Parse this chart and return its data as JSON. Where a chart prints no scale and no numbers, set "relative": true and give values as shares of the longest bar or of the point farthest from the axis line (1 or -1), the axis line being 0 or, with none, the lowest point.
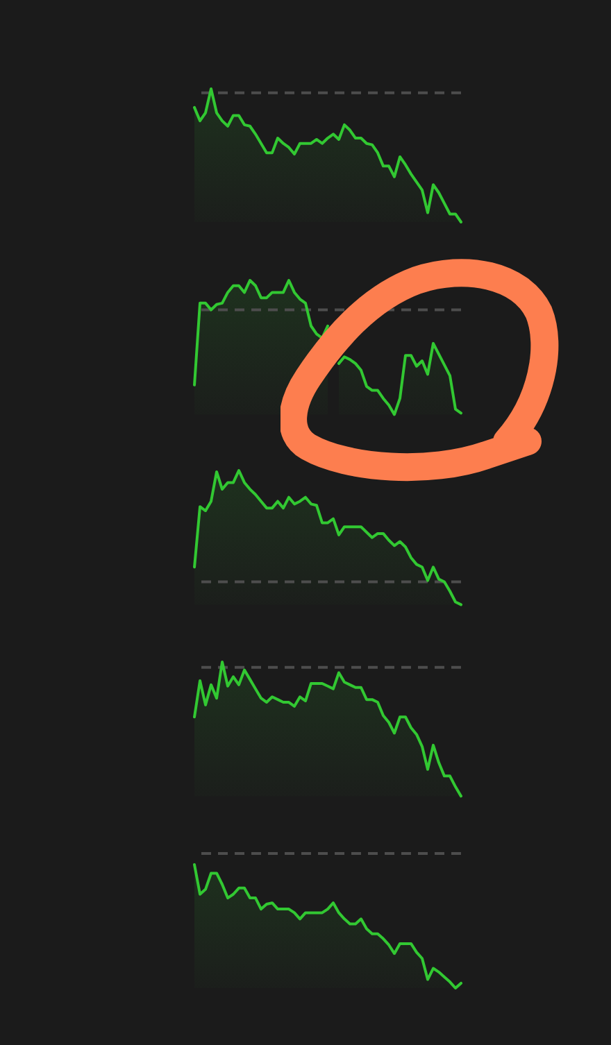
{
  "chart_data": [
    {
      "type": "area",
      "relative": true,
      "categories": [
        null,
        null,
        null,
        null,
        null,
        null,
        null,
        null,
        null,
        null,
        null,
        null,
        null,
        null,
        null,
        null,
        null,
        null,
        null,
        null,
        null,
        null,
        null,
        null,
        null,
        null,
        null,
        null,
        null,
        null,
        null,
        null,
        null,
        null,
        null,
        null,
        null,
        null,
        null,
        null,
        null,
        null,
        null,
        null,
        null,
        null,
        null,
        null,
        null
      ],
      "values": [
        0.86,
        0.76,
        0.82,
        1.0,
        0.82,
        0.76,
        0.72,
        0.8,
        0.8,
        0.73,
        0.72,
        0.66,
        0.59,
        0.52,
        0.52,
        0.63,
        0.59,
        0.56,
        0.51,
        0.59,
        0.59,
        0.59,
        0.62,
        0.59,
        0.63,
        0.66,
        0.62,
        0.73,
        0.69,
        0.63,
        0.63,
        0.59,
        0.58,
        0.52,
        0.42,
        0.42,
        0.34,
        0.49,
        0.43,
        0.36,
        0.3,
        0.24,
        0.07,
        0.28,
        0.22,
        0.14,
        0.06,
        0.06,
        0.0
      ],
      "color": "#32c832",
      "ref_lines": [
        {
          "axis": "y",
          "value": 0.97,
          "color": "#4d4d4d",
          "line_style": "dashed"
        }
      ]
    },
    {
      "type": "area",
      "relative": true,
      "categories": [
        null,
        null,
        null,
        null,
        null,
        null,
        null,
        null,
        null,
        null,
        null,
        null,
        null,
        null,
        null,
        null,
        null,
        null,
        null,
        null,
        null,
        null,
        null,
        null,
        null,
        null,
        null,
        null,
        null,
        null,
        null,
        null,
        null,
        null,
        null,
        null,
        null,
        null,
        null,
        null,
        null,
        null,
        null,
        null,
        null,
        null,
        null,
        null,
        null
      ],
      "values": [
        0.22,
        0.83,
        0.83,
        0.78,
        0.82,
        0.83,
        0.91,
        0.96,
        0.96,
        0.91,
        1.0,
        0.96,
        0.87,
        0.87,
        0.91,
        0.91,
        0.91,
        1.0,
        0.91,
        0.86,
        0.83,
        0.66,
        0.6,
        0.57,
        0.66,
        null,
        0.38,
        0.43,
        0.41,
        0.38,
        0.33,
        0.21,
        0.18,
        0.18,
        0.12,
        0.07,
        0.0,
        0.12,
        0.44,
        0.44,
        0.36,
        0.4,
        0.3,
        0.53,
        0.45,
        0.37,
        0.29,
        0.04,
        0.01
      ],
      "color": "#32c832",
      "ref_lines": [
        {
          "axis": "y",
          "value": 0.78,
          "color": "#4d4d4d",
          "line_style": "dashed"
        }
      ]
    },
    {
      "type": "area",
      "relative": true,
      "categories": [
        null,
        null,
        null,
        null,
        null,
        null,
        null,
        null,
        null,
        null,
        null,
        null,
        null,
        null,
        null,
        null,
        null,
        null,
        null,
        null,
        null,
        null,
        null,
        null,
        null,
        null,
        null,
        null,
        null,
        null,
        null,
        null,
        null,
        null,
        null,
        null,
        null,
        null,
        null,
        null,
        null,
        null,
        null,
        null,
        null,
        null,
        null,
        null,
        null
      ],
      "values": [
        0.28,
        0.73,
        0.7,
        0.77,
        0.99,
        0.86,
        0.91,
        0.91,
        1.0,
        0.91,
        0.86,
        0.82,
        0.77,
        0.72,
        0.72,
        0.77,
        0.72,
        0.8,
        0.75,
        0.77,
        0.8,
        0.75,
        0.74,
        0.61,
        0.61,
        0.64,
        0.52,
        0.58,
        0.58,
        0.58,
        0.58,
        0.54,
        0.5,
        0.53,
        0.53,
        0.48,
        0.44,
        0.47,
        0.43,
        0.35,
        0.3,
        0.28,
        0.18,
        0.28,
        0.19,
        0.17,
        0.1,
        0.02,
        0.0
      ],
      "color": "#32c832",
      "ref_lines": [
        {
          "axis": "y",
          "value": 0.17,
          "color": "#4d4d4d",
          "line_style": "dashed"
        }
      ]
    },
    {
      "type": "area",
      "relative": true,
      "categories": [
        null,
        null,
        null,
        null,
        null,
        null,
        null,
        null,
        null,
        null,
        null,
        null,
        null,
        null,
        null,
        null,
        null,
        null,
        null,
        null,
        null,
        null,
        null,
        null,
        null,
        null,
        null,
        null,
        null,
        null,
        null,
        null,
        null,
        null,
        null,
        null,
        null,
        null,
        null,
        null,
        null,
        null,
        null,
        null,
        null,
        null,
        null,
        null,
        null
      ],
      "values": [
        0.59,
        0.86,
        0.68,
        0.83,
        0.73,
        1.0,
        0.82,
        0.89,
        0.83,
        0.94,
        0.87,
        0.8,
        0.73,
        0.7,
        0.74,
        0.72,
        0.7,
        0.7,
        0.67,
        0.74,
        0.71,
        0.84,
        0.84,
        0.84,
        0.82,
        0.8,
        0.92,
        0.85,
        0.83,
        0.81,
        0.81,
        0.72,
        0.72,
        0.7,
        0.6,
        0.55,
        0.47,
        0.59,
        0.59,
        0.51,
        0.46,
        0.37,
        0.2,
        0.38,
        0.25,
        0.15,
        0.15,
        0.07,
        0.0
      ],
      "color": "#32c832",
      "ref_lines": [
        {
          "axis": "y",
          "value": 0.96,
          "color": "#4d4d4d",
          "line_style": "dashed"
        }
      ]
    },
    {
      "type": "area",
      "relative": true,
      "categories": [
        null,
        null,
        null,
        null,
        null,
        null,
        null,
        null,
        null,
        null,
        null,
        null,
        null,
        null,
        null,
        null,
        null,
        null,
        null,
        null,
        null,
        null,
        null,
        null,
        null,
        null,
        null,
        null,
        null,
        null,
        null,
        null,
        null,
        null,
        null,
        null,
        null,
        null,
        null,
        null,
        null,
        null,
        null,
        null,
        null,
        null,
        null,
        null,
        null
      ],
      "values": [
        1.0,
        0.76,
        0.8,
        0.93,
        0.93,
        0.84,
        0.73,
        0.76,
        0.81,
        0.81,
        0.73,
        0.73,
        0.64,
        0.68,
        0.69,
        0.64,
        0.64,
        0.64,
        0.61,
        0.56,
        0.61,
        0.61,
        0.61,
        0.61,
        0.64,
        0.69,
        0.61,
        0.56,
        0.52,
        0.52,
        0.56,
        0.48,
        0.44,
        0.44,
        0.4,
        0.35,
        0.28,
        0.36,
        0.36,
        0.36,
        0.29,
        0.24,
        0.07,
        0.16,
        0.13,
        0.09,
        0.05,
        0.0,
        0.04
      ],
      "color": "#32c832",
      "ref_lines": [
        {
          "axis": "y",
          "value": 1.09,
          "color": "#4d4d4d",
          "line_style": "dashed"
        }
      ]
    }
  ]
}
